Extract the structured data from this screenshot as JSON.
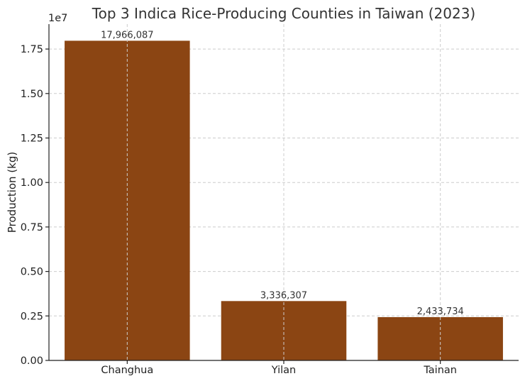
{
  "chart_data": {
    "type": "bar",
    "title": "Top 3 Indica Rice-Producing Counties in Taiwan (2023)",
    "xlabel": "",
    "ylabel": "Production (kg)",
    "y_exponent_label": "1e7",
    "categories": [
      "Changhua",
      "Yilan",
      "Tainan"
    ],
    "values": [
      17966087,
      3336307,
      2433734
    ],
    "data_labels": [
      "17,966,087",
      "3,336,307",
      "2,433,734"
    ],
    "ylim": [
      0,
      18900000
    ],
    "yticks": [
      0,
      2500000,
      5000000,
      7500000,
      10000000,
      12500000,
      15000000,
      17500000
    ],
    "ytick_labels": [
      "0.00",
      "0.25",
      "0.50",
      "0.75",
      "1.00",
      "1.25",
      "1.50",
      "1.75"
    ],
    "grid": true,
    "bar_color": "#8b4513"
  }
}
